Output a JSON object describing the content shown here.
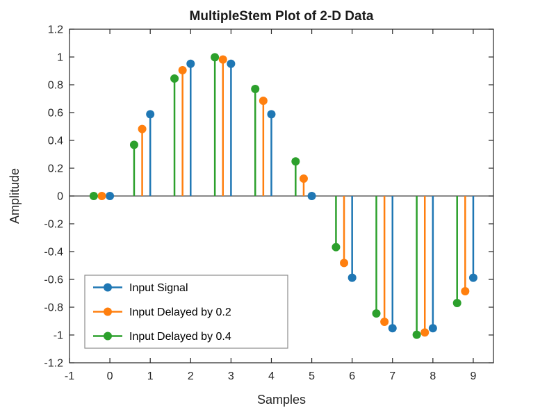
{
  "figure": {
    "title": "MultipleStem Plot of 2-D Data",
    "xlabel": "Samples",
    "ylabel": "Amplitude"
  },
  "colors": {
    "axis": "#262626",
    "baseline": "#404040",
    "tick_text": "#262626",
    "background": "#ffffff",
    "legend_border": "#8c8c8c"
  },
  "chart_data": {
    "type": "stem",
    "title": "MultipleStem Plot of 2-D Data",
    "xlabel": "Samples",
    "ylabel": "Amplitude",
    "xlim": [
      -1,
      9.5
    ],
    "ylim": [
      -1.2,
      1.2
    ],
    "x_ticks": [
      -1,
      0,
      1,
      2,
      3,
      4,
      5,
      6,
      7,
      8,
      9
    ],
    "y_ticks": [
      -1.2,
      -1,
      -0.8,
      -0.6,
      -0.4,
      -0.2,
      0,
      0.2,
      0.4,
      0.6,
      0.8,
      1,
      1.2
    ],
    "grid": false,
    "baseline": 0,
    "legend_position": "lower-left",
    "legend_entries": [
      "Input Signal",
      "Input Delayed by 0.2",
      "Input Delayed by 0.4"
    ],
    "series": [
      {
        "name": "Input Signal",
        "color": "#1f77b4",
        "x": [
          0,
          1,
          2,
          3,
          4,
          5,
          6,
          7,
          8,
          9
        ],
        "y": [
          0,
          0.588,
          0.951,
          0.951,
          0.588,
          0,
          -0.588,
          -0.951,
          -0.951,
          -0.588
        ]
      },
      {
        "name": "Input Delayed by 0.2",
        "color": "#ff7f0e",
        "x": [
          -0.2,
          0.8,
          1.8,
          2.8,
          3.8,
          4.8,
          5.8,
          6.8,
          7.8,
          8.8
        ],
        "y": [
          0,
          0.482,
          0.905,
          0.982,
          0.685,
          0.125,
          -0.482,
          -0.905,
          -0.982,
          -0.685
        ]
      },
      {
        "name": "Input Delayed by 0.4",
        "color": "#2ca02c",
        "x": [
          -0.4,
          0.6,
          1.6,
          2.6,
          3.6,
          4.6,
          5.6,
          6.6,
          7.6,
          8.6
        ],
        "y": [
          0,
          0.368,
          0.845,
          0.998,
          0.77,
          0.249,
          -0.368,
          -0.845,
          -0.998,
          -0.77
        ]
      }
    ]
  }
}
